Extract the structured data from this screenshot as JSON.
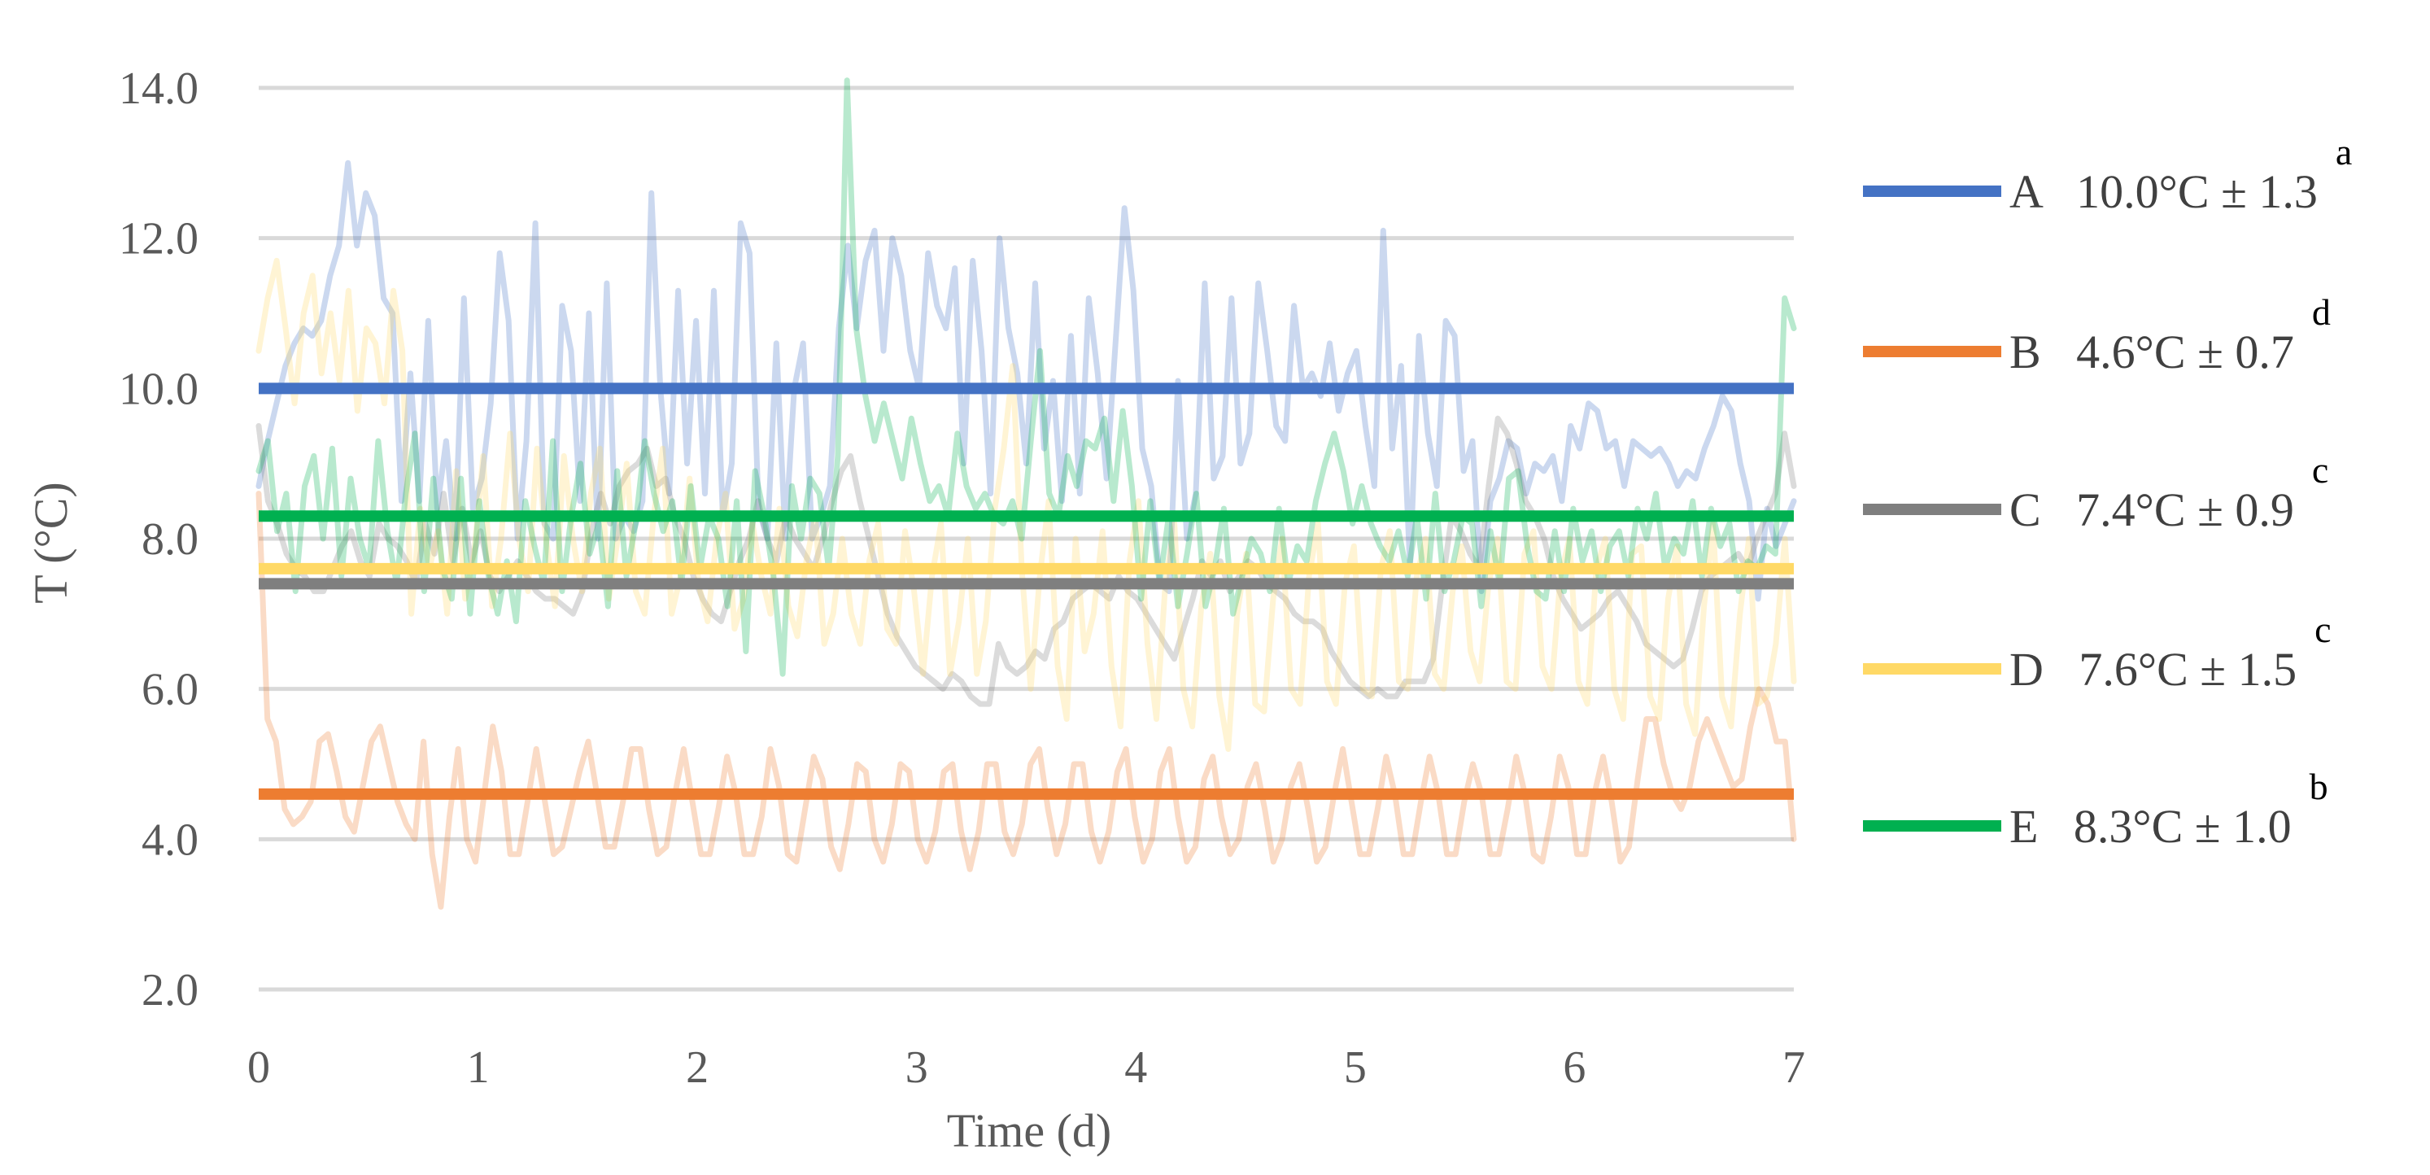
{
  "chart_data": {
    "type": "line",
    "title": "",
    "xlabel": "Time (d)",
    "ylabel": "T (°C)",
    "xlim": [
      0,
      7
    ],
    "ylim": [
      2.0,
      14.0
    ],
    "x_ticks": [
      "0",
      "1",
      "2",
      "3",
      "4",
      "5",
      "6",
      "7"
    ],
    "y_ticks": [
      "2.0",
      "4.0",
      "6.0",
      "8.0",
      "10.0",
      "12.0",
      "14.0"
    ],
    "grid": "horizontal",
    "legend_position": "right",
    "series": [
      {
        "name": "A",
        "label": "A   10.0°C ± 1.3",
        "superscript": "a",
        "color": "#4472C4",
        "mean": 10.0,
        "values": [
          8.7,
          9.3,
          9.8,
          10.3,
          10.6,
          10.8,
          10.7,
          10.9,
          11.5,
          11.9,
          13.0,
          11.9,
          12.6,
          12.3,
          11.2,
          11.0,
          8.5,
          10.2,
          8.5,
          10.9,
          8.4,
          9.3,
          8.0,
          11.2,
          8.4,
          8.8,
          9.8,
          11.8,
          10.9,
          8.0,
          9.3,
          12.2,
          8.2,
          8.0,
          11.1,
          10.5,
          8.5,
          11.0,
          8.0,
          11.4,
          8.0,
          8.3,
          8.1,
          8.5,
          12.6,
          10.0,
          8.6,
          11.3,
          9.0,
          10.9,
          8.6,
          11.3,
          8.3,
          9.0,
          12.2,
          11.8,
          8.4,
          8.0,
          10.6,
          8.0,
          10.0,
          10.6,
          8.0,
          8.3,
          8.7,
          10.8,
          11.9,
          10.8,
          11.7,
          12.1,
          10.5,
          12.0,
          11.5,
          10.5,
          10.0,
          11.8,
          11.1,
          10.8,
          11.6,
          9.0,
          11.7,
          10.5,
          8.6,
          12.0,
          10.8,
          10.2,
          9.0,
          11.4,
          9.2,
          10.1,
          8.5,
          10.7,
          8.6,
          11.2,
          10.2,
          8.8,
          10.6,
          12.4,
          11.3,
          9.2,
          8.7,
          7.4,
          7.3,
          10.1,
          8.0,
          8.6,
          11.4,
          8.8,
          9.1,
          11.2,
          9.0,
          9.4,
          11.4,
          10.5,
          9.5,
          9.3,
          11.1,
          10.0,
          10.2,
          9.9,
          10.6,
          9.7,
          10.2,
          10.5,
          9.5,
          8.7,
          12.1,
          9.2,
          10.3,
          7.6,
          10.7,
          9.4,
          8.7,
          10.9,
          10.7,
          8.9,
          9.3,
          7.3,
          8.5,
          8.8,
          9.3,
          9.2,
          8.6,
          9.0,
          8.9,
          9.1,
          8.5,
          9.5,
          9.2,
          9.8,
          9.7,
          9.2,
          9.3,
          8.7,
          9.3,
          9.2,
          9.1,
          9.2,
          9.0,
          8.7,
          8.9,
          8.8,
          9.2,
          9.5,
          9.9,
          9.7,
          9.0,
          8.5,
          7.2,
          8.4,
          7.9,
          8.2,
          8.5
        ]
      },
      {
        "name": "B",
        "label": "B   4.6°C ± 0.7",
        "superscript": "d",
        "color": "#ED7D31",
        "mean": 4.6,
        "values": [
          8.6,
          5.6,
          5.3,
          4.4,
          4.2,
          4.3,
          4.5,
          5.3,
          5.4,
          4.9,
          4.3,
          4.1,
          4.7,
          5.3,
          5.5,
          5.0,
          4.5,
          4.2,
          4.0,
          5.3,
          3.8,
          3.1,
          4.3,
          5.2,
          4.0,
          3.7,
          4.6,
          5.5,
          4.9,
          3.8,
          3.8,
          4.5,
          5.2,
          4.5,
          3.8,
          3.9,
          4.4,
          4.9,
          5.3,
          4.6,
          3.9,
          3.9,
          4.5,
          5.2,
          5.2,
          4.4,
          3.8,
          3.9,
          4.6,
          5.2,
          4.5,
          3.8,
          3.8,
          4.4,
          5.1,
          4.6,
          3.8,
          3.8,
          4.3,
          5.2,
          4.7,
          3.8,
          3.7,
          4.4,
          5.1,
          4.8,
          3.9,
          3.6,
          4.2,
          5.0,
          4.9,
          4.0,
          3.7,
          4.2,
          5.0,
          4.9,
          4.0,
          3.7,
          4.1,
          4.9,
          5.0,
          4.1,
          3.6,
          4.1,
          5.0,
          5.0,
          4.1,
          3.8,
          4.2,
          5.0,
          5.2,
          4.4,
          3.8,
          4.2,
          5.0,
          5.0,
          4.1,
          3.7,
          4.1,
          4.9,
          5.2,
          4.3,
          3.7,
          4.0,
          4.9,
          5.2,
          4.3,
          3.7,
          3.9,
          4.8,
          5.1,
          4.3,
          3.8,
          4.0,
          4.7,
          5.0,
          4.4,
          3.7,
          4.0,
          4.7,
          5.0,
          4.4,
          3.7,
          3.9,
          4.6,
          5.2,
          4.5,
          3.8,
          3.8,
          4.4,
          5.1,
          4.6,
          3.8,
          3.8,
          4.5,
          5.1,
          4.6,
          3.8,
          3.8,
          4.5,
          5.0,
          4.6,
          3.8,
          3.8,
          4.4,
          5.1,
          4.6,
          3.8,
          3.7,
          4.3,
          5.1,
          4.7,
          3.8,
          3.8,
          4.6,
          5.1,
          4.5,
          3.7,
          3.9,
          4.8,
          5.6,
          5.6,
          5.0,
          4.6,
          4.4,
          4.7,
          5.3,
          5.6,
          5.3,
          5.0,
          4.7,
          4.8,
          5.5,
          6.0,
          5.8,
          5.3,
          5.3,
          4.0
        ]
      },
      {
        "name": "C",
        "label": "C   7.4°C ± 0.9",
        "superscript": "c",
        "color": "#7F7F7F",
        "mean": 7.4,
        "values": [
          9.5,
          8.5,
          8.2,
          7.8,
          7.6,
          7.5,
          7.3,
          7.3,
          7.6,
          7.9,
          8.1,
          7.7,
          7.5,
          8.2,
          8.0,
          7.9,
          7.7,
          7.4,
          8.2,
          7.8,
          8.6,
          7.7,
          8.4,
          7.7,
          8.1,
          7.5,
          7.3,
          7.5,
          7.7,
          7.5,
          7.3,
          7.2,
          7.2,
          7.1,
          7.0,
          7.3,
          8.1,
          8.6,
          8.2,
          8.7,
          8.9,
          9.0,
          9.2,
          8.7,
          8.8,
          8.3,
          8.0,
          7.5,
          7.2,
          7.0,
          6.9,
          7.3,
          7.7,
          8.0,
          8.5,
          8.0,
          7.7,
          8.3,
          8.0,
          7.8,
          7.6,
          8.0,
          8.5,
          8.9,
          9.1,
          8.5,
          8.0,
          7.5,
          7.0,
          6.7,
          6.5,
          6.3,
          6.2,
          6.1,
          6.0,
          6.2,
          6.1,
          5.9,
          5.8,
          5.8,
          6.6,
          6.3,
          6.2,
          6.3,
          6.5,
          6.4,
          6.8,
          6.9,
          7.2,
          7.3,
          7.4,
          7.3,
          7.2,
          7.5,
          7.3,
          7.2,
          7.0,
          6.8,
          6.6,
          6.4,
          6.8,
          7.2,
          7.7,
          7.5,
          7.7,
          7.3,
          7.5,
          7.7,
          7.6,
          7.4,
          7.3,
          7.2,
          7.0,
          6.9,
          6.9,
          6.8,
          6.5,
          6.3,
          6.1,
          6.0,
          5.9,
          6.0,
          5.9,
          5.9,
          6.1,
          6.1,
          6.1,
          6.4,
          7.4,
          8.3,
          8.1,
          7.8,
          7.6,
          8.7,
          9.6,
          9.4,
          9.0,
          8.5,
          8.3,
          8.0,
          7.5,
          7.2,
          7.0,
          6.8,
          6.9,
          7.0,
          7.2,
          7.3,
          7.1,
          6.9,
          6.6,
          6.5,
          6.4,
          6.3,
          6.4,
          6.8,
          7.3,
          7.5,
          7.6,
          7.7,
          7.8,
          7.6,
          8.0,
          8.3,
          8.6,
          9.4,
          8.7
        ]
      },
      {
        "name": "D",
        "label": "D   7.6°C ± 1.5",
        "superscript": "c",
        "color": "#FFD966",
        "mean": 7.6,
        "values": [
          10.5,
          11.2,
          11.7,
          10.8,
          9.8,
          11.0,
          11.5,
          10.2,
          11.0,
          10.1,
          11.3,
          9.7,
          10.8,
          10.6,
          9.8,
          11.3,
          10.5,
          7.0,
          8.4,
          7.6,
          8.1,
          7.0,
          8.9,
          7.2,
          7.8,
          9.1,
          7.1,
          8.0,
          9.4,
          8.0,
          7.3,
          9.2,
          8.0,
          7.1,
          9.1,
          8.0,
          7.3,
          8.6,
          9.2,
          7.2,
          8.0,
          9.0,
          7.3,
          7.0,
          8.3,
          9.2,
          7.0,
          7.5,
          8.8,
          7.4,
          6.9,
          8.0,
          8.6,
          6.8,
          7.2,
          8.2,
          7.5,
          7.0,
          8.4,
          7.1,
          6.7,
          7.7,
          8.3,
          6.6,
          7.0,
          8.0,
          7.0,
          6.6,
          7.7,
          8.2,
          6.8,
          6.6,
          8.1,
          7.3,
          6.2,
          7.5,
          8.2,
          6.2,
          6.9,
          8.0,
          6.2,
          6.9,
          8.4,
          9.2,
          10.3,
          7.6,
          6.0,
          7.5,
          8.5,
          6.3,
          5.6,
          8.0,
          6.5,
          7.0,
          8.1,
          6.3,
          5.5,
          7.7,
          8.5,
          6.6,
          5.6,
          7.4,
          8.2,
          6.0,
          5.5,
          7.1,
          7.8,
          5.9,
          5.2,
          7.0,
          7.8,
          5.8,
          5.7,
          7.2,
          8.0,
          6.0,
          5.8,
          7.5,
          8.2,
          6.1,
          5.8,
          7.4,
          7.9,
          6.0,
          5.9,
          7.6,
          8.1,
          6.1,
          6.0,
          7.5,
          8.0,
          6.2,
          6.0,
          7.3,
          7.9,
          6.5,
          6.1,
          7.4,
          8.0,
          6.1,
          6.0,
          7.8,
          8.1,
          6.3,
          6.0,
          7.5,
          8.0,
          6.1,
          5.8,
          7.6,
          8.0,
          6.0,
          5.6,
          7.8,
          7.9,
          5.9,
          5.6,
          7.2,
          7.9,
          5.8,
          5.4,
          7.1,
          8.2,
          5.9,
          5.5,
          7.0,
          8.0,
          5.8,
          5.9,
          6.6,
          8.0,
          6.1
        ]
      },
      {
        "name": "E",
        "label": "E   8.3°C ± 1.0",
        "superscript": "b",
        "color": "#00B050",
        "mean": 8.3,
        "values": [
          8.9,
          9.3,
          8.1,
          8.6,
          7.3,
          8.7,
          9.1,
          8.0,
          9.2,
          7.5,
          8.8,
          8.0,
          7.6,
          9.3,
          8.1,
          7.4,
          8.6,
          9.4,
          7.3,
          8.8,
          7.6,
          7.2,
          8.8,
          7.0,
          8.5,
          7.5,
          7.0,
          7.7,
          6.9,
          8.5,
          7.9,
          7.4,
          9.3,
          7.3,
          8.3,
          9.0,
          7.8,
          8.2,
          7.1,
          8.9,
          7.5,
          8.2,
          9.3,
          8.6,
          8.1,
          8.5,
          7.4,
          8.7,
          7.6,
          8.3,
          8.0,
          7.1,
          8.5,
          6.5,
          8.9,
          8.3,
          7.5,
          6.2,
          8.7,
          8.0,
          8.8,
          8.6,
          7.6,
          9.1,
          14.1,
          10.8,
          9.9,
          9.3,
          9.8,
          9.3,
          8.8,
          9.6,
          9.0,
          8.5,
          8.7,
          8.3,
          9.4,
          8.7,
          8.4,
          8.6,
          8.3,
          8.2,
          8.5,
          8.0,
          9.3,
          10.5,
          8.6,
          8.3,
          9.1,
          8.7,
          9.3,
          9.2,
          9.6,
          8.5,
          9.7,
          8.7,
          7.2,
          8.5,
          7.4,
          8.3,
          7.1,
          7.8,
          8.6,
          7.1,
          7.6,
          8.4,
          7.0,
          7.5,
          8.0,
          7.8,
          7.3,
          8.4,
          7.4,
          7.9,
          7.7,
          8.5,
          9.0,
          9.4,
          8.9,
          8.2,
          8.7,
          8.2,
          7.9,
          7.7,
          8.1,
          7.5,
          8.3,
          7.2,
          8.6,
          7.3,
          7.7,
          8.3,
          8.2,
          7.1,
          8.1,
          7.4,
          8.8,
          8.9,
          7.9,
          7.3,
          7.2,
          8.1,
          7.3,
          8.4,
          7.7,
          8.1,
          7.3,
          7.9,
          8.1,
          7.5,
          8.4,
          8.0,
          8.6,
          7.6,
          8.0,
          7.8,
          8.5,
          7.5,
          8.4,
          7.9,
          8.2,
          7.3,
          7.7,
          7.6,
          7.9,
          7.8,
          11.2,
          10.8
        ]
      }
    ]
  },
  "colors": {
    "grid": "#D9D9D9",
    "background": "#FFFFFF",
    "text": "#595959"
  }
}
